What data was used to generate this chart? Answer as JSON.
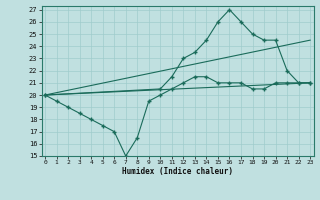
{
  "title": "",
  "xlabel": "Humidex (Indice chaleur)",
  "bg_color": "#c0e0e0",
  "grid_color": "#a0cccc",
  "line_color": "#1a6b5a",
  "xlim": [
    0,
    23
  ],
  "ylim": [
    15,
    27
  ],
  "yticks": [
    15,
    16,
    17,
    18,
    19,
    20,
    21,
    22,
    23,
    24,
    25,
    26,
    27
  ],
  "xticks": [
    0,
    1,
    2,
    3,
    4,
    5,
    6,
    7,
    8,
    9,
    10,
    11,
    12,
    13,
    14,
    15,
    16,
    17,
    18,
    19,
    20,
    21,
    22,
    23
  ],
  "series": [
    {
      "x": [
        0,
        1,
        2,
        3,
        4,
        5,
        6,
        7,
        8,
        9,
        10,
        11,
        12,
        13,
        14,
        15,
        16,
        17,
        18,
        19,
        20,
        21,
        22,
        23
      ],
      "y": [
        20,
        19.5,
        19,
        18.5,
        18,
        17.5,
        17,
        15,
        16.5,
        19.5,
        20,
        20.5,
        21,
        21.5,
        21.5,
        21,
        21,
        21,
        20.5,
        20.5,
        21,
        21,
        21,
        21
      ],
      "marker": true
    },
    {
      "x": [
        0,
        23
      ],
      "y": [
        20,
        21
      ],
      "marker": false
    },
    {
      "x": [
        0,
        10,
        11,
        12,
        13,
        14,
        15,
        16,
        17,
        18,
        19,
        20,
        21,
        22,
        23
      ],
      "y": [
        20,
        20.5,
        21.5,
        23,
        23.5,
        24.5,
        26,
        27,
        26,
        25,
        24.5,
        24.5,
        22,
        21,
        21
      ],
      "marker": true
    },
    {
      "x": [
        0,
        23
      ],
      "y": [
        20,
        24.5
      ],
      "marker": false
    }
  ]
}
